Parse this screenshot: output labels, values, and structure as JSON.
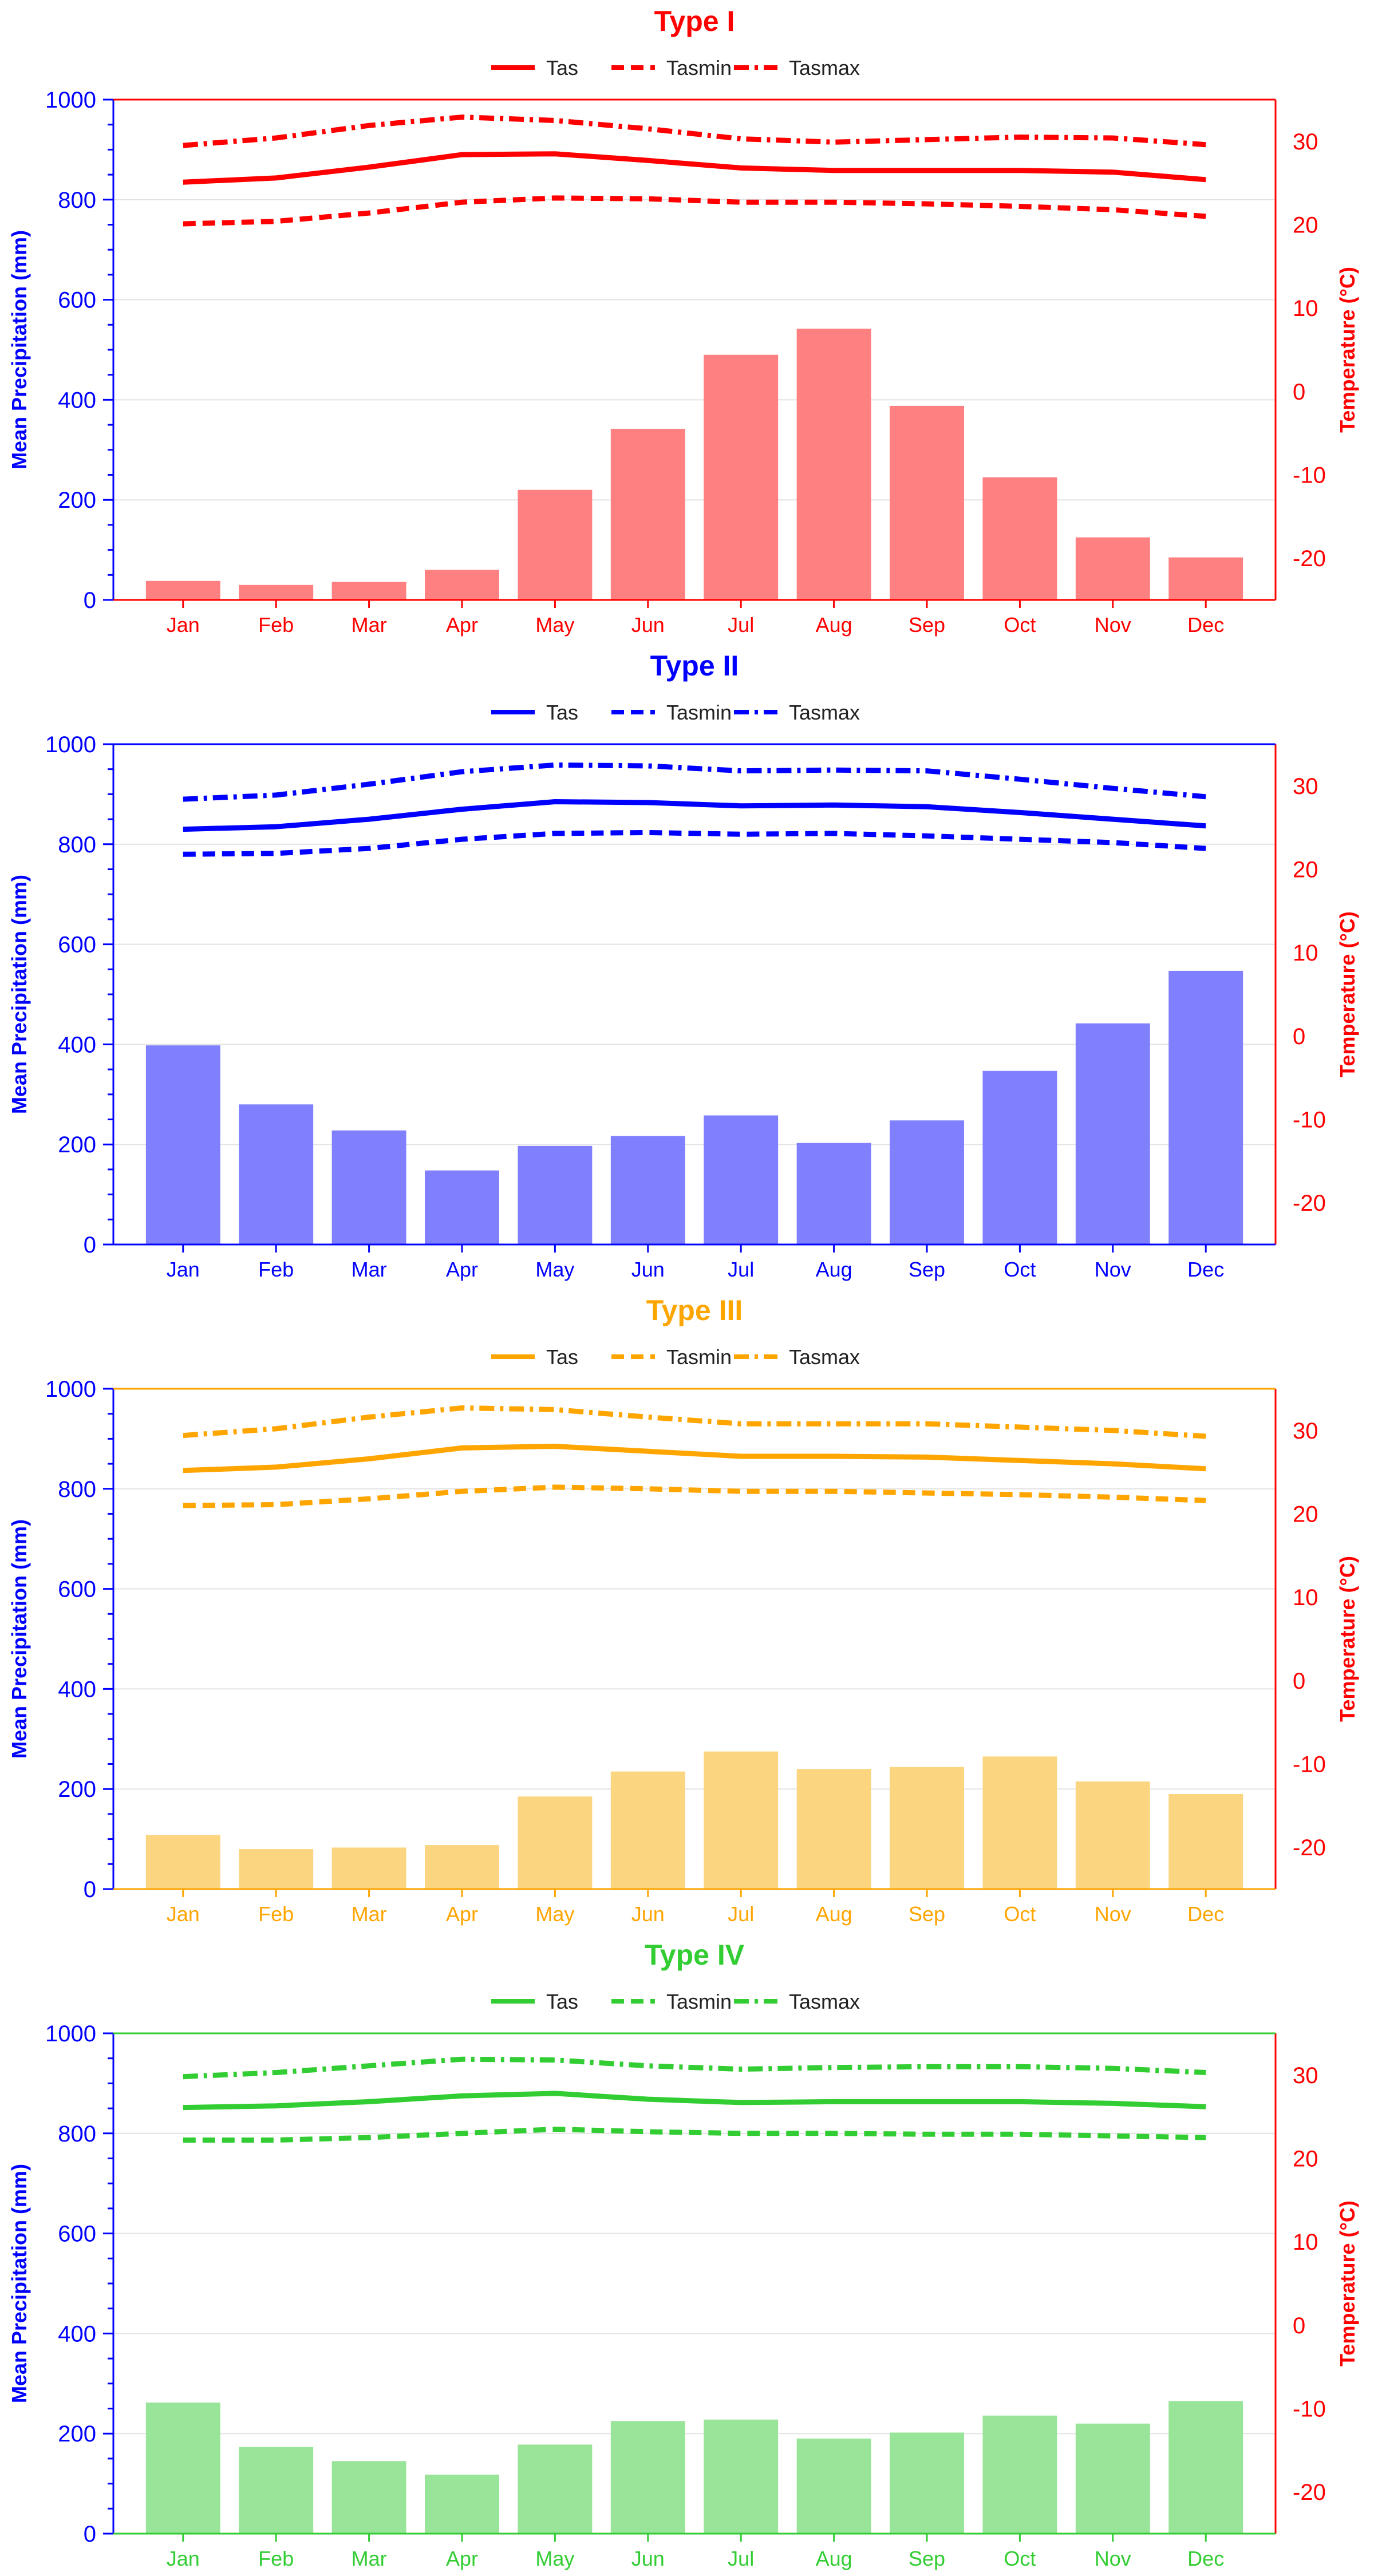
{
  "figure": {
    "left_axis_label": "Mean Precipitation (mm)",
    "right_axis_label": "Temperature (°C)"
  },
  "legend_labels": [
    "Tas",
    "Tasmin",
    "Tasmax"
  ],
  "colors": {
    "left_axis": "#0000ff",
    "right_axis": "#ff0000",
    "grid": "#e3e3e3"
  },
  "chart_data": [
    {
      "type": "bar+line",
      "title": "Type I",
      "color": "#ff0000",
      "bar_fill": "#ff8080",
      "categories": [
        "Jan",
        "Feb",
        "Mar",
        "Apr",
        "May",
        "Jun",
        "Jul",
        "Aug",
        "Sep",
        "Oct",
        "Nov",
        "Dec"
      ],
      "precip_series": {
        "name": "Mean Precipitation (mm)",
        "values": [
          38,
          30,
          36,
          60,
          220,
          342,
          490,
          542,
          388,
          245,
          125,
          85
        ]
      },
      "temp_series": [
        {
          "name": "Tas",
          "style": "solid",
          "values": [
            25.1,
            25.6,
            26.9,
            28.4,
            28.5,
            27.7,
            26.8,
            26.5,
            26.5,
            26.5,
            26.3,
            25.4
          ]
        },
        {
          "name": "Tasmin",
          "style": "dashed",
          "values": [
            20.1,
            20.4,
            21.4,
            22.7,
            23.2,
            23.1,
            22.7,
            22.7,
            22.5,
            22.2,
            21.8,
            21.0
          ]
        },
        {
          "name": "Tasmax",
          "style": "dashdot",
          "values": [
            29.5,
            30.4,
            31.9,
            32.9,
            32.5,
            31.5,
            30.3,
            29.9,
            30.2,
            30.5,
            30.4,
            29.6
          ]
        }
      ],
      "ylim_left": [
        0,
        1000
      ],
      "ylim_right": [
        -25,
        35
      ],
      "yticks_left": [
        0,
        200,
        400,
        600,
        800,
        1000
      ],
      "yticks_right": [
        -20,
        -10,
        0,
        10,
        20,
        30
      ]
    },
    {
      "type": "bar+line",
      "title": "Type II",
      "color": "#0000ff",
      "bar_fill": "#8080ff",
      "categories": [
        "Jan",
        "Feb",
        "Mar",
        "Apr",
        "May",
        "Jun",
        "Jul",
        "Aug",
        "Sep",
        "Oct",
        "Nov",
        "Dec"
      ],
      "precip_series": {
        "name": "Mean Precipitation (mm)",
        "values": [
          398,
          280,
          228,
          148,
          197,
          217,
          258,
          203,
          248,
          347,
          442,
          547
        ]
      },
      "temp_series": [
        {
          "name": "Tas",
          "style": "solid",
          "values": [
            24.8,
            25.1,
            26.0,
            27.2,
            28.1,
            28.0,
            27.6,
            27.7,
            27.5,
            26.8,
            26.0,
            25.2
          ]
        },
        {
          "name": "Tasmin",
          "style": "dashed",
          "values": [
            21.8,
            21.9,
            22.5,
            23.6,
            24.3,
            24.4,
            24.2,
            24.3,
            24.0,
            23.6,
            23.2,
            22.5
          ]
        },
        {
          "name": "Tasmax",
          "style": "dashdot",
          "values": [
            28.4,
            28.9,
            30.2,
            31.7,
            32.5,
            32.4,
            31.8,
            31.9,
            31.8,
            30.8,
            29.7,
            28.7
          ]
        }
      ],
      "ylim_left": [
        0,
        1000
      ],
      "ylim_right": [
        -25,
        35
      ],
      "yticks_left": [
        0,
        200,
        400,
        600,
        800,
        1000
      ],
      "yticks_right": [
        -20,
        -10,
        0,
        10,
        20,
        30
      ]
    },
    {
      "type": "bar+line",
      "title": "Type III",
      "color": "#ffa500",
      "bar_fill": "#fcd580",
      "categories": [
        "Jan",
        "Feb",
        "Mar",
        "Apr",
        "May",
        "Jun",
        "Jul",
        "Aug",
        "Sep",
        "Oct",
        "Nov",
        "Dec"
      ],
      "precip_series": {
        "name": "Mean Precipitation (mm)",
        "values": [
          108,
          80,
          83,
          88,
          185,
          235,
          275,
          240,
          244,
          265,
          215,
          190
        ]
      },
      "temp_series": [
        {
          "name": "Tas",
          "style": "solid",
          "values": [
            25.2,
            25.6,
            26.6,
            27.9,
            28.1,
            27.5,
            26.9,
            26.9,
            26.8,
            26.4,
            26.0,
            25.4
          ]
        },
        {
          "name": "Tasmin",
          "style": "dashed",
          "values": [
            21.0,
            21.1,
            21.8,
            22.7,
            23.2,
            23.0,
            22.7,
            22.7,
            22.5,
            22.3,
            22.0,
            21.6
          ]
        },
        {
          "name": "Tasmax",
          "style": "dashdot",
          "values": [
            29.4,
            30.2,
            31.6,
            32.7,
            32.5,
            31.6,
            30.8,
            30.8,
            30.8,
            30.4,
            30.0,
            29.3
          ]
        }
      ],
      "ylim_left": [
        0,
        1000
      ],
      "ylim_right": [
        -25,
        35
      ],
      "yticks_left": [
        0,
        200,
        400,
        600,
        800,
        1000
      ],
      "yticks_right": [
        -20,
        -10,
        0,
        10,
        20,
        30
      ]
    },
    {
      "type": "bar+line",
      "title": "Type IV",
      "color": "#32cd32",
      "bar_fill": "#98e498",
      "categories": [
        "Jan",
        "Feb",
        "Mar",
        "Apr",
        "May",
        "Jun",
        "Jul",
        "Aug",
        "Sep",
        "Oct",
        "Nov",
        "Dec"
      ],
      "precip_series": {
        "name": "Mean Precipitation (mm)",
        "values": [
          262,
          173,
          145,
          118,
          178,
          225,
          228,
          190,
          202,
          236,
          220,
          265
        ]
      },
      "temp_series": [
        {
          "name": "Tas",
          "style": "solid",
          "values": [
            26.1,
            26.3,
            26.8,
            27.5,
            27.8,
            27.1,
            26.7,
            26.8,
            26.8,
            26.8,
            26.6,
            26.2
          ]
        },
        {
          "name": "Tasmin",
          "style": "dashed",
          "values": [
            22.2,
            22.2,
            22.5,
            23.0,
            23.5,
            23.2,
            23.0,
            23.0,
            22.9,
            22.9,
            22.7,
            22.5
          ]
        },
        {
          "name": "Tasmax",
          "style": "dashdot",
          "values": [
            29.8,
            30.3,
            31.1,
            31.9,
            31.8,
            31.1,
            30.7,
            30.9,
            31.0,
            31.0,
            30.8,
            30.3
          ]
        }
      ],
      "ylim_left": [
        0,
        1000
      ],
      "ylim_right": [
        -25,
        35
      ],
      "yticks_left": [
        0,
        200,
        400,
        600,
        800,
        1000
      ],
      "yticks_right": [
        -20,
        -10,
        0,
        10,
        20,
        30
      ]
    }
  ]
}
